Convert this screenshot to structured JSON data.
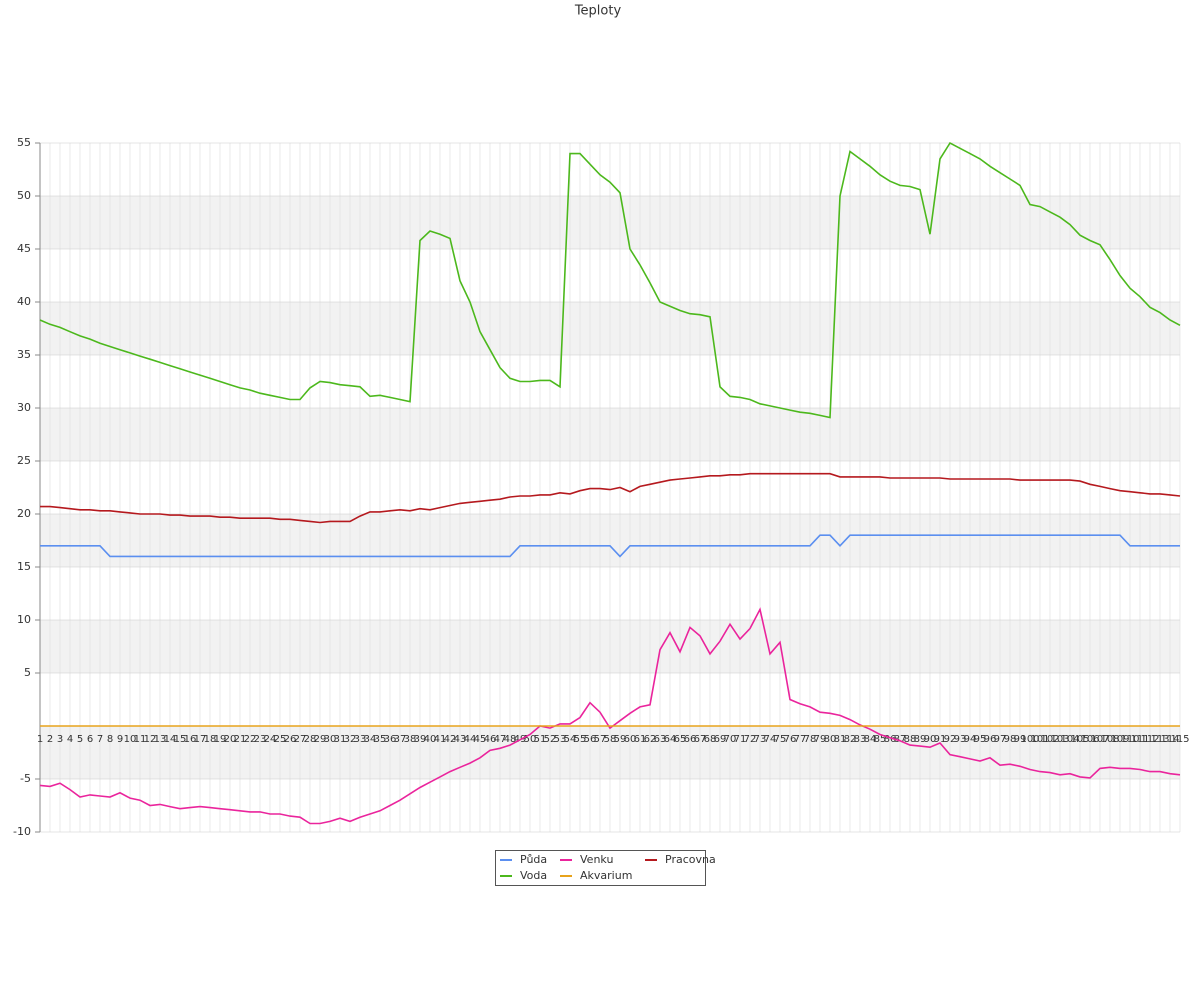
{
  "chart_data": {
    "type": "line",
    "title": "Teploty",
    "categories": [
      "1",
      "2",
      "3",
      "4",
      "5",
      "6",
      "7",
      "8",
      "9",
      "10",
      "11",
      "12",
      "13",
      "14",
      "15",
      "16",
      "17",
      "18",
      "19",
      "20",
      "21",
      "22",
      "23",
      "24",
      "25",
      "26",
      "27",
      "28",
      "29",
      "30",
      "31",
      "32",
      "33",
      "34",
      "35",
      "36",
      "37",
      "38",
      "39",
      "40",
      "41",
      "42",
      "43",
      "44",
      "45",
      "46",
      "47",
      "48",
      "49",
      "50",
      "51",
      "52",
      "53",
      "54",
      "55",
      "56",
      "57",
      "58",
      "59",
      "60",
      "61",
      "62",
      "63",
      "64",
      "65",
      "66",
      "67",
      "68",
      "69",
      "70",
      "71",
      "72",
      "73",
      "74",
      "75",
      "76",
      "77",
      "78",
      "79",
      "80",
      "81",
      "82",
      "83",
      "84",
      "85",
      "86",
      "87",
      "88",
      "89",
      "90",
      "91",
      "92",
      "93",
      "94",
      "95",
      "96",
      "97",
      "98",
      "99",
      "100",
      "101",
      "102",
      "103",
      "104",
      "105",
      "106",
      "107",
      "108",
      "109",
      "110",
      "111",
      "112",
      "113",
      "114",
      "115"
    ],
    "ylim": [
      -10,
      55
    ],
    "yticks": [
      -10,
      -5,
      5,
      10,
      15,
      20,
      25,
      30,
      35,
      40,
      45,
      50,
      55
    ],
    "grid": true,
    "series": [
      {
        "name": "Půda",
        "color": "#5b8ff0",
        "values": [
          17,
          17,
          17,
          17,
          17,
          17,
          17,
          16,
          16,
          16,
          16,
          16,
          16,
          16,
          16,
          16,
          16,
          16,
          16,
          16,
          16,
          16,
          16,
          16,
          16,
          16,
          16,
          16,
          16,
          16,
          16,
          16,
          16,
          16,
          16,
          16,
          16,
          16,
          16,
          16,
          16,
          16,
          16,
          16,
          16,
          16,
          16,
          16,
          17,
          17,
          17,
          17,
          17,
          17,
          17,
          17,
          17,
          17,
          16,
          17,
          17,
          17,
          17,
          17,
          17,
          17,
          17,
          17,
          17,
          17,
          17,
          17,
          17,
          17,
          17,
          17,
          17,
          17,
          18,
          18,
          17,
          18,
          18,
          18,
          18,
          18,
          18,
          18,
          18,
          18,
          18,
          18,
          18,
          18,
          18,
          18,
          18,
          18,
          18,
          18,
          18,
          18,
          18,
          18,
          18,
          18,
          18,
          18,
          18,
          17,
          17,
          17,
          17,
          17,
          17
        ]
      },
      {
        "name": "Pracovna",
        "color": "#b5191e",
        "values": [
          20.7,
          20.7,
          20.6,
          20.5,
          20.4,
          20.4,
          20.3,
          20.3,
          20.2,
          20.1,
          20.0,
          20.0,
          20.0,
          19.9,
          19.9,
          19.8,
          19.8,
          19.8,
          19.7,
          19.7,
          19.6,
          19.6,
          19.6,
          19.6,
          19.5,
          19.5,
          19.4,
          19.3,
          19.2,
          19.3,
          19.3,
          19.3,
          19.8,
          20.2,
          20.2,
          20.3,
          20.4,
          20.3,
          20.5,
          20.4,
          20.6,
          20.8,
          21.0,
          21.1,
          21.2,
          21.3,
          21.4,
          21.6,
          21.7,
          21.7,
          21.8,
          21.8,
          22.0,
          21.9,
          22.2,
          22.4,
          22.4,
          22.3,
          22.5,
          22.1,
          22.6,
          22.8,
          23.0,
          23.2,
          23.3,
          23.4,
          23.5,
          23.6,
          23.6,
          23.7,
          23.7,
          23.8,
          23.8,
          23.8,
          23.8,
          23.8,
          23.8,
          23.8,
          23.8,
          23.8,
          23.5,
          23.5,
          23.5,
          23.5,
          23.5,
          23.4,
          23.4,
          23.4,
          23.4,
          23.4,
          23.4,
          23.3,
          23.3,
          23.3,
          23.3,
          23.3,
          23.3,
          23.3,
          23.2,
          23.2,
          23.2,
          23.2,
          23.2,
          23.2,
          23.1,
          22.8,
          22.6,
          22.4,
          22.2,
          22.1,
          22.0,
          21.9,
          21.9,
          21.8,
          21.7
        ]
      },
      {
        "name": "Venku",
        "color": "#ea249c",
        "values": [
          -5.6,
          -5.7,
          -5.4,
          -6.0,
          -6.7,
          -6.5,
          -6.6,
          -6.7,
          -6.3,
          -6.8,
          -7.0,
          -7.5,
          -7.4,
          -7.6,
          -7.8,
          -7.7,
          -7.6,
          -7.7,
          -7.8,
          -7.9,
          -8.0,
          -8.1,
          -8.1,
          -8.3,
          -8.3,
          -8.5,
          -8.6,
          -9.2,
          -9.2,
          -9.0,
          -8.7,
          -9.0,
          -8.6,
          -8.3,
          -8.0,
          -7.5,
          -7.0,
          -6.4,
          -5.8,
          -5.3,
          -4.8,
          -4.3,
          -3.9,
          -3.5,
          -3.0,
          -2.3,
          -2.1,
          -1.8,
          -1.3,
          -0.8,
          0.0,
          -0.2,
          0.2,
          0.2,
          0.8,
          2.2,
          1.3,
          -0.2,
          0.5,
          1.2,
          1.8,
          2.0,
          7.2,
          8.8,
          7.0,
          9.3,
          8.5,
          6.8,
          8.0,
          9.6,
          8.2,
          9.2,
          11.0,
          6.8,
          7.9,
          2.5,
          2.1,
          1.8,
          1.3,
          1.2,
          1.0,
          0.6,
          0.1,
          -0.3,
          -0.8,
          -1.1,
          -1.4,
          -1.8,
          -1.9,
          -2.0,
          -1.6,
          -2.7,
          -2.9,
          -3.1,
          -3.3,
          -3.0,
          -3.7,
          -3.6,
          -3.8,
          -4.1,
          -4.3,
          -4.4,
          -4.6,
          -4.5,
          -4.8,
          -4.9,
          -4.0,
          -3.9,
          -4.0,
          -4.0,
          -4.1,
          -4.3,
          -4.3,
          -4.5,
          -4.6
        ]
      },
      {
        "name": "Voda",
        "color": "#4cb81c",
        "values": [
          38.3,
          37.9,
          37.6,
          37.2,
          36.8,
          36.5,
          36.1,
          35.8,
          35.5,
          35.2,
          34.9,
          34.6,
          34.3,
          34.0,
          33.7,
          33.4,
          33.1,
          32.8,
          32.5,
          32.2,
          31.9,
          31.7,
          31.4,
          31.2,
          31.0,
          30.8,
          30.8,
          31.9,
          32.5,
          32.4,
          32.2,
          32.1,
          32.0,
          31.1,
          31.2,
          31.0,
          30.8,
          30.6,
          45.8,
          46.7,
          46.4,
          46.0,
          42.0,
          40.0,
          37.2,
          35.5,
          33.8,
          32.8,
          32.5,
          32.5,
          32.6,
          32.6,
          32.0,
          54.0,
          54.0,
          53.0,
          52.0,
          51.3,
          50.3,
          45.0,
          43.5,
          41.8,
          40.0,
          39.6,
          39.2,
          38.9,
          38.8,
          38.6,
          32.0,
          31.1,
          31.0,
          30.8,
          30.4,
          30.2,
          30.0,
          29.8,
          29.6,
          29.5,
          29.3,
          29.1,
          50.0,
          54.2,
          53.5,
          52.8,
          52.0,
          51.4,
          51.0,
          50.9,
          50.6,
          46.4,
          53.5,
          55.0,
          54.5,
          54.0,
          53.5,
          52.8,
          52.2,
          51.6,
          51.0,
          49.2,
          49.0,
          48.5,
          48.0,
          47.3,
          46.3,
          45.8,
          45.4,
          44.0,
          42.5,
          41.3,
          40.5,
          39.5,
          39.0,
          38.3,
          37.8
        ]
      },
      {
        "name": "Akvarium",
        "color": "#e8a31b",
        "values": [
          0,
          0,
          0,
          0,
          0,
          0,
          0,
          0,
          0,
          0,
          0,
          0,
          0,
          0,
          0,
          0,
          0,
          0,
          0,
          0,
          0,
          0,
          0,
          0,
          0,
          0,
          0,
          0,
          0,
          0,
          0,
          0,
          0,
          0,
          0,
          0,
          0,
          0,
          0,
          0,
          0,
          0,
          0,
          0,
          0,
          0,
          0,
          0,
          0,
          0,
          0,
          0,
          0,
          0,
          0,
          0,
          0,
          0,
          0,
          0,
          0,
          0,
          0,
          0,
          0,
          0,
          0,
          0,
          0,
          0,
          0,
          0,
          0,
          0,
          0,
          0,
          0,
          0,
          0,
          0,
          0,
          0,
          0,
          0,
          0,
          0,
          0,
          0,
          0,
          0,
          0,
          0,
          0,
          0,
          0,
          0,
          0,
          0,
          0,
          0,
          0,
          0,
          0,
          0,
          0,
          0,
          0,
          0,
          0,
          0,
          0,
          0,
          0,
          0,
          0
        ]
      }
    ]
  }
}
